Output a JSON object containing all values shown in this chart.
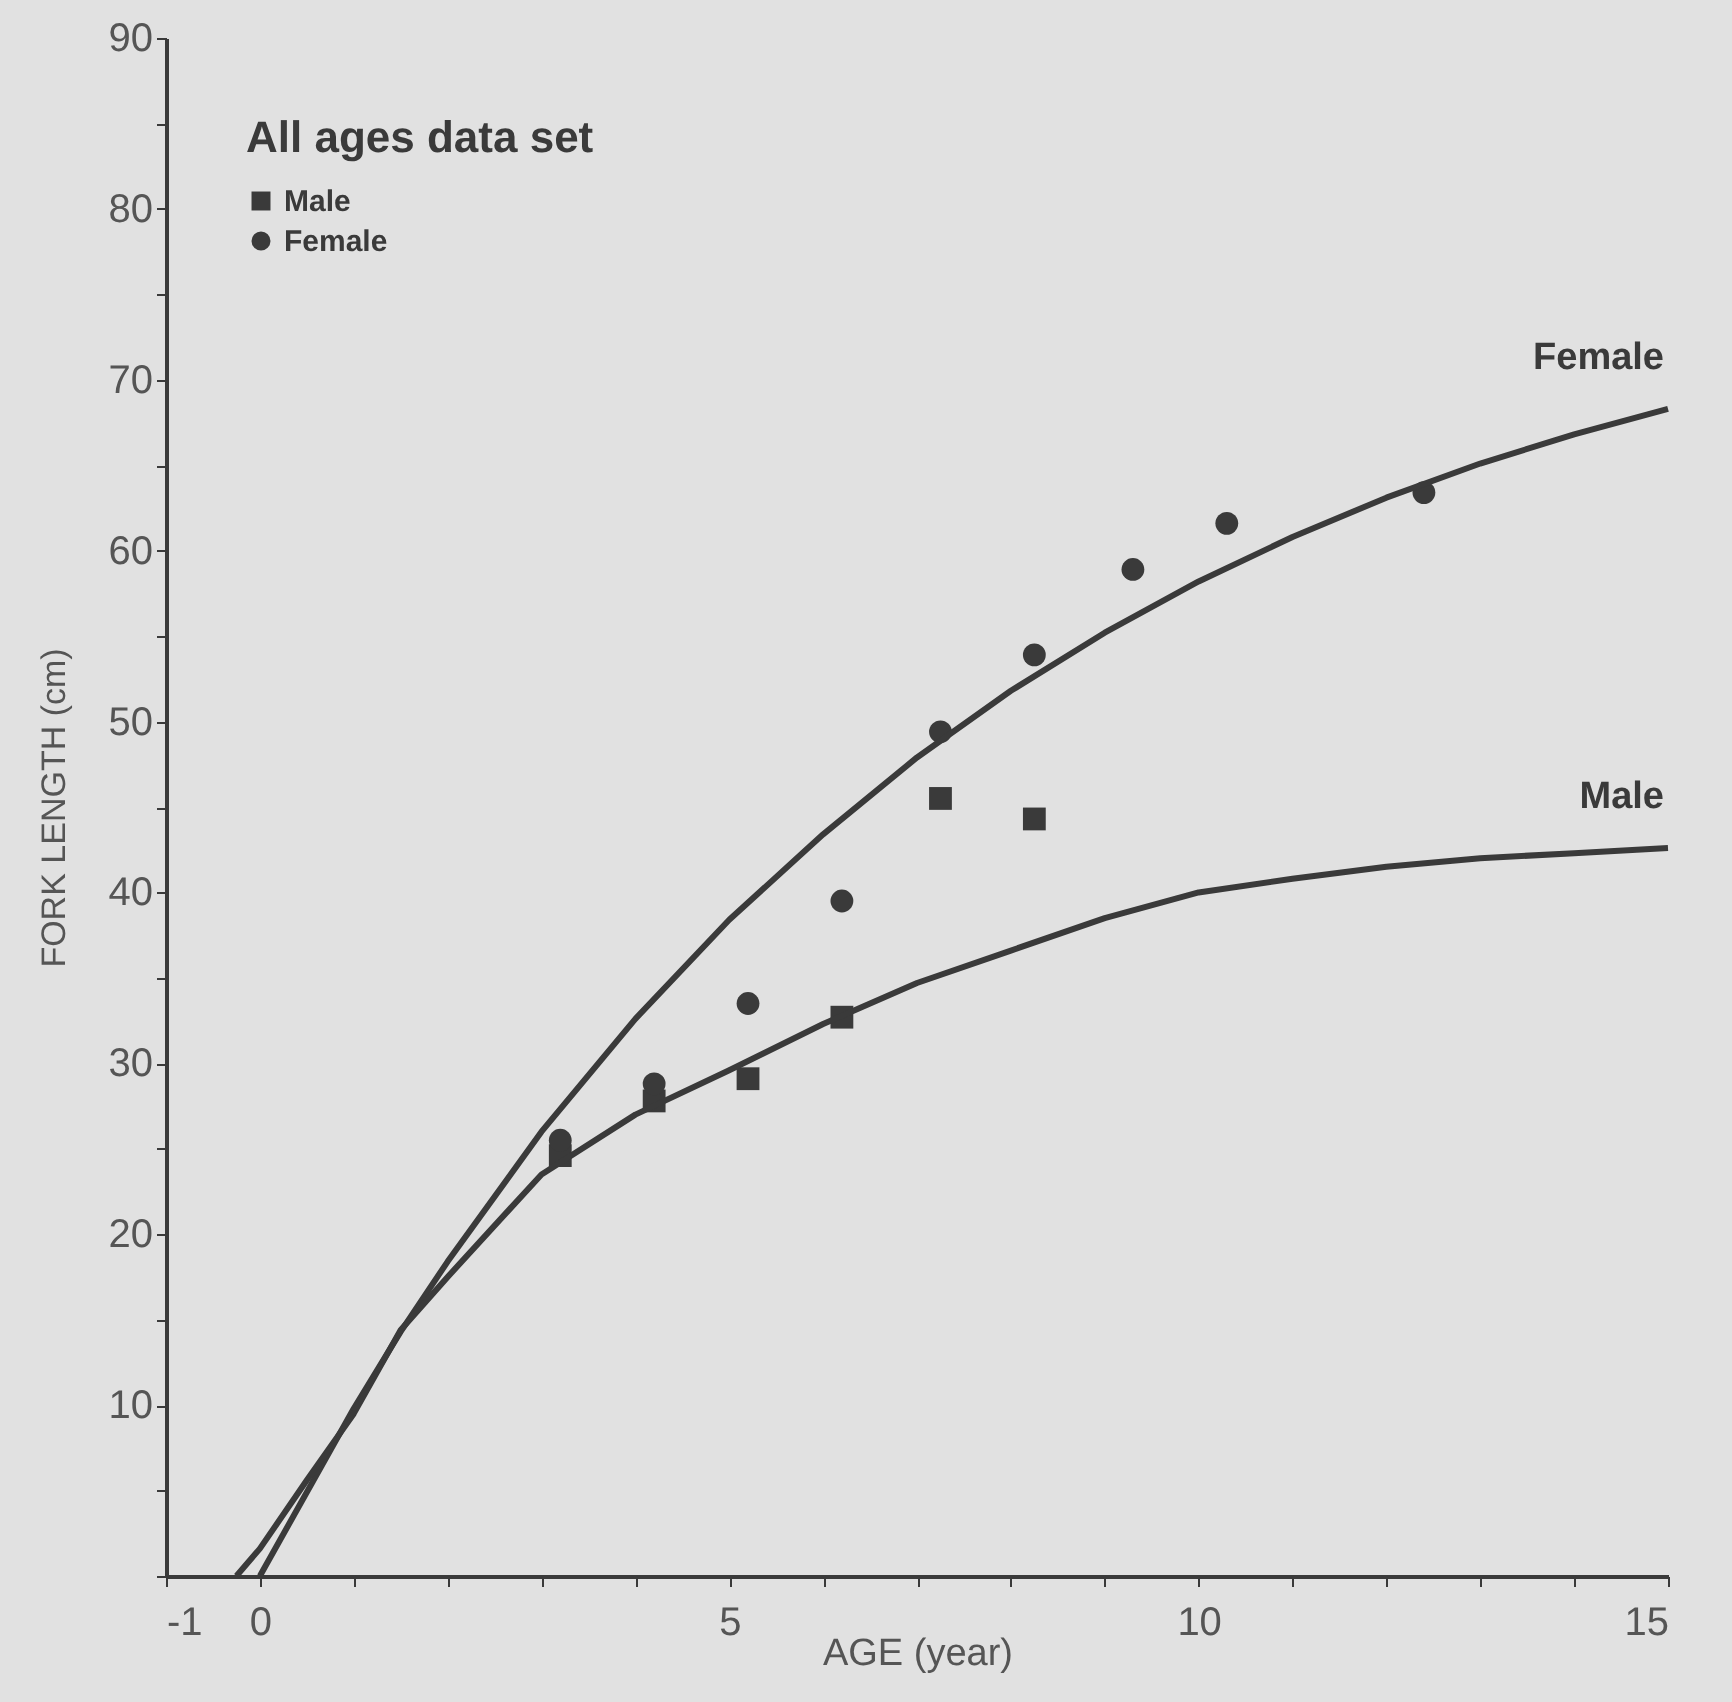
{
  "chart_data": {
    "type": "scatter",
    "xlabel": "AGE (year)",
    "ylabel": "FORK LENGTH (cm)",
    "legend_title": "All ages data set",
    "legend": "top left",
    "grid": false,
    "xlim": [
      -1,
      15
    ],
    "ylim": [
      0,
      90
    ],
    "xticks": [
      -1,
      0,
      {
        "value": 1,
        "label": null
      },
      {
        "value": 2,
        "label": null
      },
      {
        "value": 3,
        "label": null
      },
      {
        "value": 4,
        "label": null
      },
      5,
      {
        "value": 6,
        "label": null
      },
      {
        "value": 7,
        "label": null
      },
      {
        "value": 8,
        "label": null
      },
      {
        "value": 9,
        "label": null
      },
      10,
      {
        "value": 11,
        "label": null
      },
      {
        "value": 12,
        "label": null
      },
      {
        "value": 13,
        "label": null
      },
      {
        "value": 14,
        "label": null
      },
      15
    ],
    "yticks": [
      {
        "value": 0,
        "label": null
      },
      {
        "value": 5,
        "label": null
      },
      10,
      {
        "value": 15,
        "label": null
      },
      20,
      {
        "value": 25,
        "label": null
      },
      30,
      {
        "value": 35,
        "label": null
      },
      40,
      {
        "value": 45,
        "label": null
      },
      50,
      {
        "value": 55,
        "label": null
      },
      60,
      {
        "value": 65,
        "label": null
      },
      70,
      {
        "value": 75,
        "label": null
      },
      80,
      {
        "value": 85,
        "label": null
      },
      90
    ],
    "series": [
      {
        "name": "Male",
        "type": "scatter",
        "marker": "square",
        "color": "#3a3a3a",
        "x": [
          3.2,
          4.2,
          5.2,
          6.2,
          7.25,
          8.25
        ],
        "values": [
          24.6,
          27.8,
          29.1,
          32.7,
          45.5,
          44.3
        ]
      },
      {
        "name": "Female",
        "type": "scatter",
        "marker": "circle",
        "color": "#3a3a3a",
        "x": [
          3.2,
          4.2,
          5.2,
          6.2,
          7.25,
          8.25,
          9.3,
          10.3,
          12.4
        ],
        "values": [
          25.5,
          28.8,
          33.5,
          39.5,
          49.4,
          53.9,
          58.9,
          61.6,
          63.4
        ]
      },
      {
        "name": "Female",
        "type": "line",
        "marker": "none",
        "line_style": "solid",
        "color": "#3a3a3a",
        "x": [
          0,
          1,
          1.5,
          2,
          3,
          4,
          5,
          6,
          7,
          8,
          9,
          10,
          11,
          12,
          13,
          14,
          15
        ],
        "values": [
          0,
          9.8,
          14.3,
          18.4,
          26,
          32.6,
          38.4,
          43.4,
          47.9,
          51.8,
          55.2,
          58.2,
          60.8,
          63.1,
          65.1,
          66.8,
          68.3
        ]
      },
      {
        "name": "Male",
        "type": "line",
        "marker": "none",
        "line_style": "solid",
        "color": "#3a3a3a",
        "x": [
          -0.25,
          0,
          0.5,
          1,
          1.5,
          2,
          3,
          4,
          5,
          6,
          7,
          8,
          9,
          10,
          11,
          12,
          13,
          14,
          15
        ],
        "values": [
          0,
          1.6,
          5.6,
          9.5,
          14.4,
          17.5,
          23.5,
          27,
          29.6,
          32.3,
          34.7,
          36.6,
          38.5,
          40,
          40.8,
          41.5,
          42,
          42.3,
          42.6
        ]
      }
    ]
  }
}
